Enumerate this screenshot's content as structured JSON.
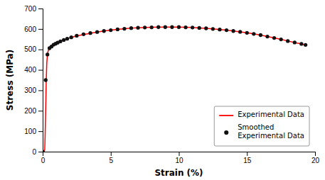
{
  "chart_data": {
    "type": "line",
    "xlabel": "Strain (%)",
    "ylabel": "Stress (MPa)",
    "xlim": [
      0,
      20
    ],
    "ylim": [
      0,
      700
    ],
    "xticks": [
      0,
      5,
      10,
      15,
      20
    ],
    "yticks": [
      0,
      100,
      200,
      300,
      400,
      500,
      600,
      700
    ],
    "grid": false,
    "legend": "lower right",
    "series": [
      {
        "name": "Experimental Data",
        "type": "line",
        "color": "#ff0000",
        "line_style": "solid",
        "x": [
          0.0,
          0.05,
          0.1,
          0.15,
          0.18,
          0.22,
          0.26,
          0.3,
          0.35,
          0.4,
          0.5,
          0.6,
          0.8,
          1.0,
          1.5,
          2.0,
          2.5,
          3.0,
          3.5,
          4.0,
          4.5,
          5.0,
          5.5,
          6.0,
          6.5,
          7.0,
          7.5,
          8.0,
          8.5,
          9.0,
          9.5,
          10.0,
          10.5,
          11.0,
          11.5,
          12.0,
          12.5,
          13.0,
          13.5,
          14.0,
          14.5,
          15.0,
          15.5,
          16.0,
          16.5,
          17.0,
          17.5,
          18.0,
          18.5,
          19.0,
          19.3
        ],
        "values": [
          0,
          0,
          0,
          10,
          80,
          200,
          340,
          430,
          475,
          492,
          506,
          514,
          523,
          530,
          545,
          557,
          566,
          573,
          579,
          585,
          590,
          594,
          598,
          601,
          604,
          606,
          607,
          608,
          609,
          609,
          609,
          609,
          608,
          607,
          605,
          603,
          600,
          597,
          594,
          590,
          586,
          581,
          576,
          570,
          563,
          556,
          549,
          541,
          534,
          527,
          522
        ]
      },
      {
        "name": "Smoothed\nExperimental Data",
        "type": "scatter",
        "color": "#111111",
        "marker": "circle",
        "x": [
          0.0,
          0.22,
          0.35,
          0.5,
          0.65,
          0.8,
          0.95,
          1.1,
          1.3,
          1.55,
          1.8,
          2.1,
          2.5,
          3.0,
          3.5,
          4.0,
          4.5,
          5.0,
          5.5,
          6.0,
          6.5,
          7.0,
          7.5,
          8.0,
          8.5,
          9.0,
          9.5,
          10.0,
          10.5,
          11.0,
          11.5,
          12.0,
          12.5,
          13.0,
          13.5,
          14.0,
          14.5,
          15.0,
          15.5,
          16.0,
          16.5,
          17.0,
          17.5,
          18.0,
          18.5,
          19.0,
          19.3
        ],
        "values": [
          0,
          350,
          475,
          506,
          514,
          523,
          528,
          533,
          539,
          546,
          552,
          559,
          567,
          574,
          580,
          585,
          590,
          594,
          598,
          601,
          604,
          606,
          607,
          608,
          609,
          609,
          609,
          609,
          608,
          607,
          605,
          603,
          600,
          597,
          594,
          590,
          586,
          581,
          576,
          570,
          563,
          556,
          549,
          541,
          534,
          527,
          522
        ]
      }
    ]
  }
}
